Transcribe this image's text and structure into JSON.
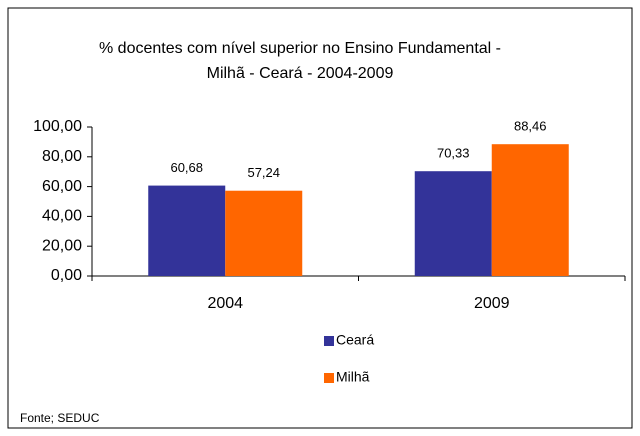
{
  "chart_data": {
    "type": "bar",
    "title": [
      "% docentes com nível  superior no Ensino Fundamental -",
      "Milhã  -  Ceará - 2004-2009"
    ],
    "categories": [
      "2004",
      "2009"
    ],
    "series": [
      {
        "name": "Ceará",
        "color": "#333399",
        "values": [
          60.68,
          70.33
        ],
        "value_labels": [
          "60,68",
          "70,33"
        ]
      },
      {
        "name": "Milhã",
        "color": "#ff6600",
        "values": [
          57.24,
          88.46
        ],
        "value_labels": [
          "57,24",
          "88,46"
        ]
      }
    ],
    "ylim": [
      0,
      100
    ],
    "yticks": [
      {
        "value": 0,
        "label": "0,00"
      },
      {
        "value": 20,
        "label": "20,00"
      },
      {
        "value": 40,
        "label": "40,00"
      },
      {
        "value": 60,
        "label": "60,00"
      },
      {
        "value": 80,
        "label": "80,00"
      },
      {
        "value": 100,
        "label": "100,00"
      }
    ],
    "legend": "bottom",
    "source": "Fonte; SEDUC"
  }
}
